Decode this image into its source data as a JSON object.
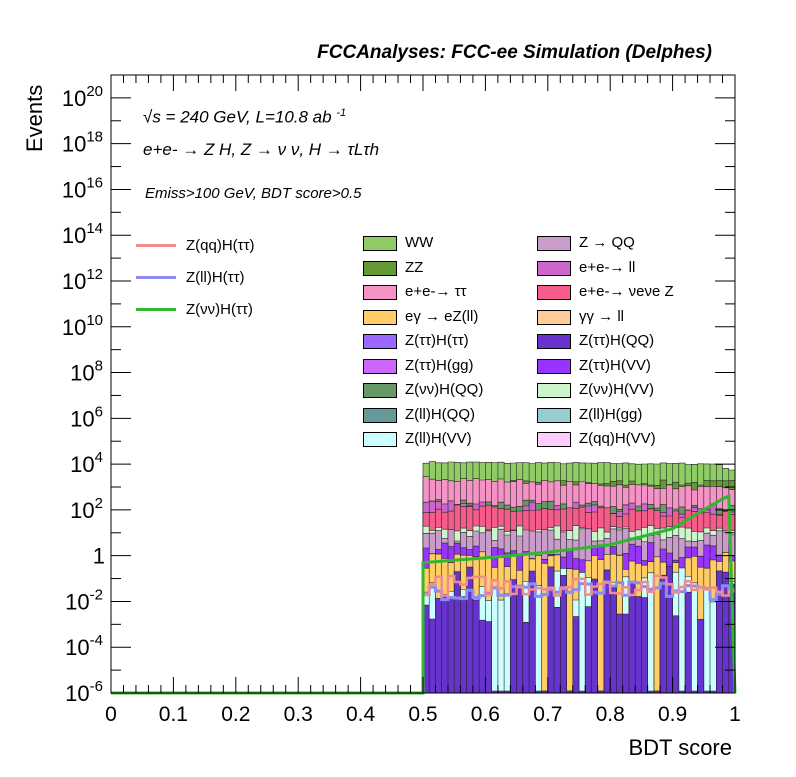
{
  "header": {
    "title": "FCCAnalyses: FCC-ee Simulation (Delphes)"
  },
  "annotations": {
    "energy": "√s = 240 GeV, L=10.8 ab",
    "lumi_exp": "-1",
    "process": "e+e- → Z H, Z → ν ν, H → τLτh",
    "selection": "Emiss>100 GeV, BDT score>0.5"
  },
  "chart_data": {
    "type": "histogram-stacked",
    "xlabel": "BDT score",
    "ylabel": "Events",
    "xlim": [
      0,
      1
    ],
    "ylim": [
      1e-06,
      1e+21
    ],
    "log_y": true,
    "x_ticks": [
      "0",
      "0.1",
      "0.2",
      "0.3",
      "0.4",
      "0.5",
      "0.6",
      "0.7",
      "0.8",
      "0.9",
      "1"
    ],
    "y_ticks": [
      {
        "mant": "10",
        "exp": "-6",
        "value": 1e-06
      },
      {
        "mant": "10",
        "exp": "-4",
        "value": 0.0001
      },
      {
        "mant": "10",
        "exp": "-2",
        "value": 0.01
      },
      {
        "mant": "1",
        "exp": "",
        "value": 1
      },
      {
        "mant": "10",
        "exp": "2",
        "value": 100.0
      },
      {
        "mant": "10",
        "exp": "4",
        "value": 10000.0
      },
      {
        "mant": "10",
        "exp": "6",
        "value": 1000000.0
      },
      {
        "mant": "10",
        "exp": "8",
        "value": 100000000.0
      },
      {
        "mant": "10",
        "exp": "10",
        "value": 10000000000.0
      },
      {
        "mant": "10",
        "exp": "12",
        "value": 1000000000000.0
      },
      {
        "mant": "10",
        "exp": "14",
        "value": 100000000000000.0
      },
      {
        "mant": "10",
        "exp": "16",
        "value": 1e+16
      },
      {
        "mant": "10",
        "exp": "18",
        "value": 1e+18
      },
      {
        "mant": "10",
        "exp": "20",
        "value": 1e+20
      }
    ],
    "signal_lines": [
      {
        "name": "Z(qq)H(ττ)",
        "color": "#f08c8c"
      },
      {
        "name": "Z(ll)H(ττ)",
        "color": "#8c8cf0"
      },
      {
        "name": "Z(νν)H(ττ)",
        "color": "#2db82d"
      }
    ],
    "backgrounds": [
      {
        "name": "WW",
        "color": "#8fcc66"
      },
      {
        "name": "Z → QQ",
        "color": "#c99cc9"
      },
      {
        "name": "ZZ",
        "color": "#659933"
      },
      {
        "name": "e+e-→ ll",
        "color": "#cc66cc"
      },
      {
        "name": "e+e-→ ττ",
        "color": "#f593c6"
      },
      {
        "name": "e+e-→ νeνe Z",
        "color": "#f55c8a"
      },
      {
        "name": "eγ → eZ(ll)",
        "color": "#ffcc66"
      },
      {
        "name": "γγ → ll",
        "color": "#ffcc99"
      },
      {
        "name": "Z(ττ)H(ττ)",
        "color": "#9966ff"
      },
      {
        "name": "Z(ττ)H(QQ)",
        "color": "#6633cc"
      },
      {
        "name": "Z(ττ)H(gg)",
        "color": "#cc66ff"
      },
      {
        "name": "Z(ττ)H(VV)",
        "color": "#9933ff"
      },
      {
        "name": "Z(νν)H(QQ)",
        "color": "#669966"
      },
      {
        "name": "Z(νν)H(VV)",
        "color": "#ccf5cc"
      },
      {
        "name": "Z(ll)H(QQ)",
        "color": "#669999"
      },
      {
        "name": "Z(ll)H(gg)",
        "color": "#99cccc"
      },
      {
        "name": "Z(ll)H(VV)",
        "color": "#ccffff"
      },
      {
        "name": "Z(qq)H(VV)",
        "color": "#ffccff"
      }
    ],
    "bins": {
      "xmin": 0.5,
      "xmax": 1.0,
      "count": 50
    },
    "stack_top_levels": {
      "WW": {
        "start": 12000.0,
        "end": 10000.0
      },
      "ZZ_band": {
        "start": 1500.0,
        "end": 1500.0
      },
      "ee_tautau": {
        "start": 2500.0,
        "end": 800.0
      },
      "ee_nunuZ": {
        "start": 120.0,
        "end": 60.0
      },
      "ZnnH_VV": {
        "start": 15.0,
        "end": 15.0
      },
      "Z_QQ": {
        "start": 8.0,
        "end": 8.0
      }
    },
    "signal_ZnnHtautau": {
      "x": [
        0.5,
        0.6,
        0.7,
        0.8,
        0.9,
        0.95,
        0.98,
        0.99,
        1.0
      ],
      "y": [
        0.5,
        0.8,
        1.4,
        3,
        15,
        100,
        300,
        400,
        1e-06
      ]
    },
    "signal_ZllHtautau_level": 0.03,
    "signal_ZqqHtautau_level": 0.05
  }
}
